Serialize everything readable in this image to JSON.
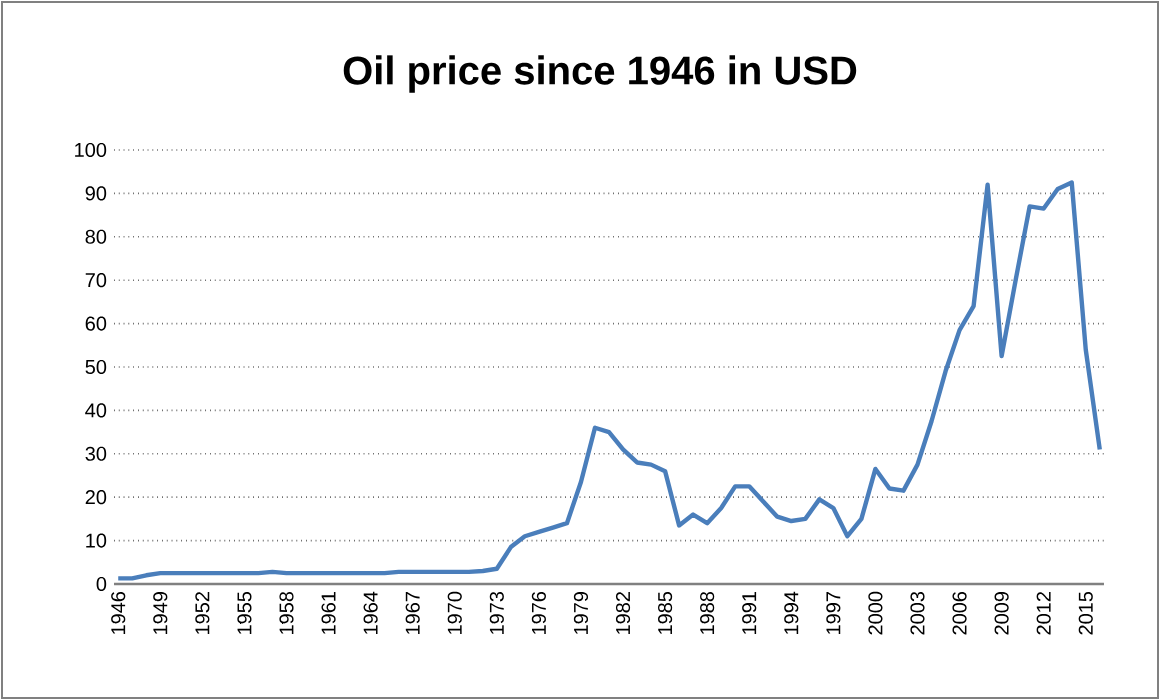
{
  "chart_data": {
    "type": "line",
    "title": "Oil price since 1946 in USD",
    "categories": [
      "1946",
      null,
      null,
      "1949",
      null,
      null,
      "1952",
      null,
      null,
      "1955",
      null,
      null,
      "1958",
      null,
      null,
      "1961",
      null,
      null,
      "1964",
      null,
      null,
      "1967",
      null,
      null,
      "1970",
      null,
      null,
      "1973",
      null,
      null,
      "1976",
      null,
      null,
      "1979",
      null,
      null,
      "1982",
      null,
      null,
      "1985",
      null,
      null,
      "1988",
      null,
      null,
      "1991",
      null,
      null,
      "1994",
      null,
      null,
      "1997",
      null,
      null,
      "2000",
      null,
      null,
      "2003",
      null,
      null,
      "2006",
      null,
      null,
      "2009",
      null,
      null,
      "2012",
      null,
      null,
      "2015",
      null
    ],
    "series": [
      {
        "color": "#4a7ebb",
        "values": [
          1.3,
          1.3,
          2,
          2.5,
          2.5,
          2.5,
          2.5,
          2.5,
          2.5,
          2.5,
          2.5,
          2.8,
          2.5,
          2.5,
          2.5,
          2.5,
          2.5,
          2.5,
          2.5,
          2.5,
          2.8,
          2.8,
          2.8,
          2.8,
          2.8,
          2.8,
          3,
          3.5,
          8.5,
          11,
          12,
          13,
          14,
          23.5,
          36,
          35,
          31,
          28,
          27.5,
          26,
          13.5,
          16,
          14,
          17.5,
          22.5,
          22.5,
          19,
          15.5,
          14.5,
          15,
          19.5,
          17.5,
          11,
          15,
          26.5,
          22,
          21.5,
          27.5,
          37.5,
          49,
          58.5,
          64,
          92,
          52.5,
          70,
          87,
          86.5,
          91,
          92.5,
          54,
          31
        ]
      }
    ],
    "ylim": [
      0,
      100
    ],
    "yticks": [
      0,
      10,
      20,
      30,
      40,
      50,
      60,
      70,
      80,
      90,
      100
    ],
    "grid": "y",
    "marker": "none",
    "line_style": "solid"
  }
}
